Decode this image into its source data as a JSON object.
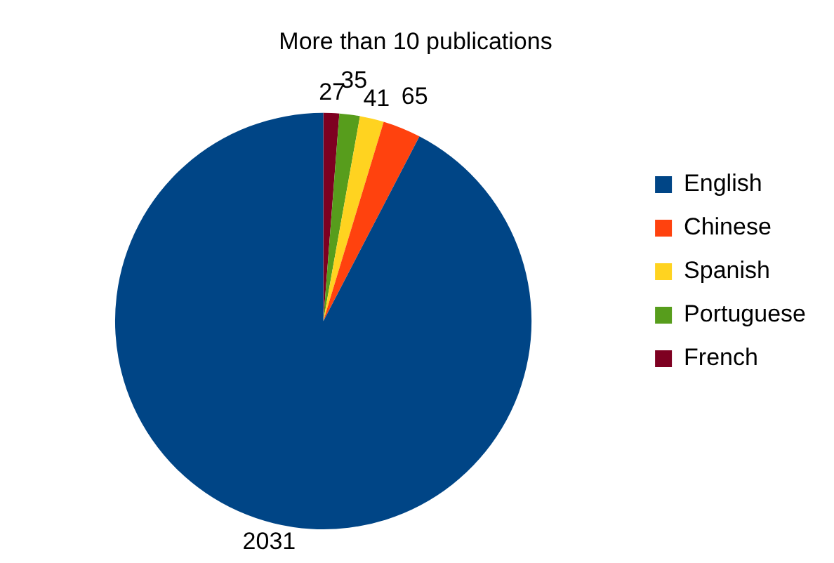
{
  "chart_data": {
    "type": "pie",
    "title": "More than 10 publications",
    "categories": [
      "English",
      "Chinese",
      "Spanish",
      "Portuguese",
      "French"
    ],
    "values": [
      2031,
      65,
      41,
      35,
      27
    ],
    "colors": [
      "#004586",
      "#ff420e",
      "#ffd320",
      "#579d1c",
      "#7e0021"
    ],
    "data_labels": true,
    "legend": "right"
  }
}
